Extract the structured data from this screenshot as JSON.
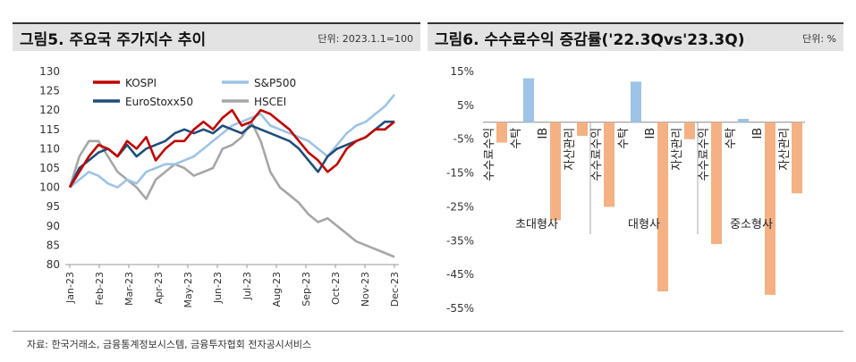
{
  "left_panel": {
    "title": "그림5. 주요국 주가지수 추이",
    "unit": "단위: 2023.1.1=100"
  },
  "right_panel": {
    "title": "그림6. 수수료수익 증감률('22.3Qvs'23.3Q)",
    "unit": "단위: %"
  },
  "source": "자료: 한국거래소, 금융통계정보시스템, 금융투자협회 전자공시서비스",
  "colors": {
    "KOSPI": "#c00000",
    "S&P500": "#9dc3e6",
    "EuroStoxx50": "#1f4e79",
    "HSCEI": "#a6a6a6",
    "bar_positive": "#9dc3e6",
    "bar_negative": "#f4b183"
  },
  "chart_data": [
    {
      "type": "line",
      "x_ticks": [
        "Jan-23",
        "Feb-23",
        "Mar-23",
        "Apr-23",
        "May-23",
        "Jun-23",
        "Jul-23",
        "Aug-23",
        "Sep-23",
        "Oct-23",
        "Nov-23",
        "Dec-23"
      ],
      "ylim": [
        80,
        130
      ],
      "y_ticks": [
        80,
        85,
        90,
        95,
        100,
        105,
        110,
        115,
        120,
        125,
        130
      ],
      "legend": [
        "KOSPI",
        "S&P500",
        "EuroStoxx50",
        "HSCEI"
      ],
      "series": [
        {
          "name": "KOSPI",
          "values": [
            100,
            104,
            108,
            111,
            110,
            108,
            112,
            110,
            113,
            107,
            110,
            112,
            112,
            115,
            117,
            115,
            118,
            120,
            116,
            117,
            120,
            119,
            117,
            115,
            112,
            109,
            107,
            104,
            106,
            110,
            112,
            113,
            115,
            115,
            117
          ]
        },
        {
          "name": "S&P500",
          "values": [
            100,
            102,
            104,
            103,
            101,
            100,
            102,
            101,
            104,
            105,
            106,
            106,
            107,
            108,
            110,
            112,
            114,
            116,
            117,
            118,
            119,
            116,
            115,
            114,
            113,
            112,
            110,
            108,
            111,
            114,
            116,
            117,
            119,
            121,
            124
          ]
        },
        {
          "name": "EuroStoxx50",
          "values": [
            100,
            105,
            107,
            109,
            110,
            108,
            111,
            108,
            110,
            111,
            112,
            114,
            115,
            114,
            115,
            114,
            116,
            115,
            114,
            116,
            115,
            114,
            113,
            112,
            110,
            107,
            104,
            108,
            110,
            111,
            112,
            113,
            115,
            117,
            117
          ]
        },
        {
          "name": "HSCEI",
          "values": [
            100,
            108,
            112,
            112,
            108,
            104,
            102,
            100,
            97,
            102,
            104,
            106,
            105,
            103,
            104,
            105,
            110,
            111,
            113,
            117,
            112,
            104,
            100,
            98,
            96,
            93,
            91,
            92,
            90,
            88,
            86,
            85,
            84,
            83,
            82
          ]
        }
      ]
    },
    {
      "type": "bar",
      "ylim": [
        -55,
        15
      ],
      "y_ticks": [
        "15%",
        "5%",
        "-5%",
        "-15%",
        "-25%",
        "-35%",
        "-45%",
        "-55%"
      ],
      "y_tick_values": [
        15,
        5,
        -5,
        -15,
        -25,
        -35,
        -45,
        -55
      ],
      "groups": [
        {
          "name": "초대형사",
          "categories": [
            "수수료수익",
            "수탁",
            "IB",
            "자산관리"
          ],
          "values": [
            -6,
            13,
            -29,
            -4
          ]
        },
        {
          "name": "대형사",
          "categories": [
            "수수료수익",
            "수탁",
            "IB",
            "자산관리"
          ],
          "values": [
            -25,
            12,
            -50,
            -5
          ]
        },
        {
          "name": "중소형사",
          "categories": [
            "수수료수익",
            "수탁",
            "IB",
            "자산관리"
          ],
          "values": [
            -36,
            1,
            -51,
            -21
          ]
        }
      ]
    }
  ]
}
